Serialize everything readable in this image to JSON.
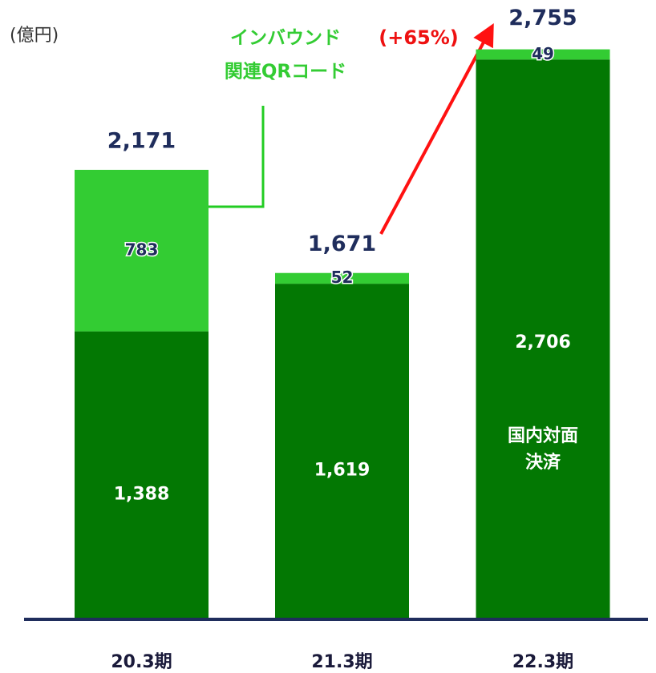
{
  "chart_data": {
    "type": "stacked_bar",
    "unit": "(億円)",
    "categories": [
      "20.3期",
      "21.3期",
      "22.3期"
    ],
    "series": [
      {
        "color": "#037803",
        "values": [
          1388,
          1619,
          2706
        ],
        "value_labels": [
          "1,388",
          "1,619",
          "2,706"
        ]
      },
      {
        "color": "#33cc33",
        "values": [
          783,
          52,
          49
        ]
      }
    ],
    "totals": [
      2171,
      1671,
      2755
    ],
    "totals_labels": [
      "2,171",
      "1,671",
      "2,755"
    ],
    "inbound_label": [
      "インバウンド",
      "関連QRコード"
    ],
    "domestic_label": [
      "国内対面",
      "決済"
    ],
    "growth_label": "(+65%)",
    "ylim": [
      0,
      2800
    ]
  }
}
